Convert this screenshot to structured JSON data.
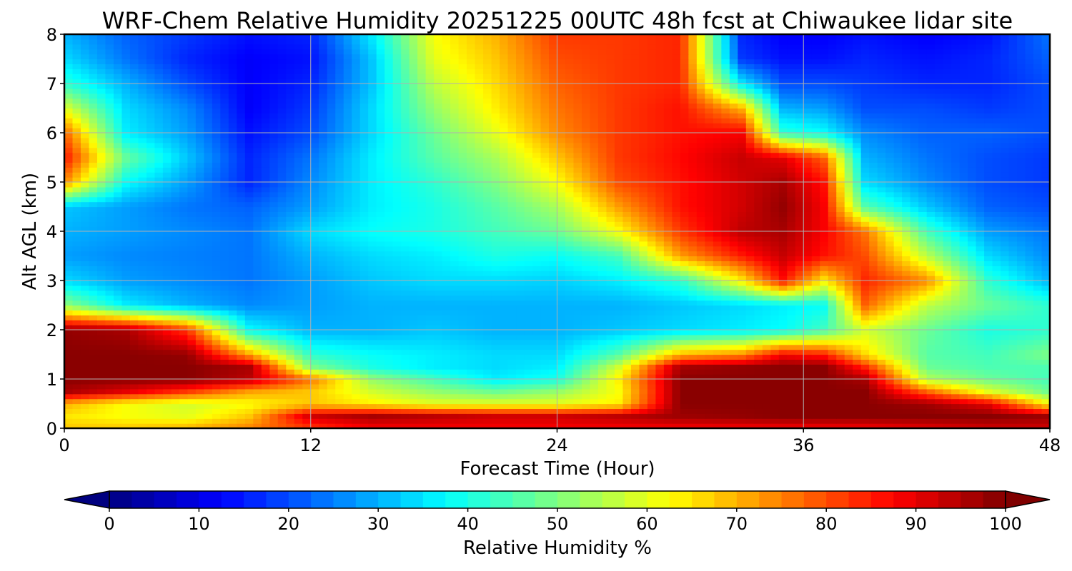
{
  "chart_data": {
    "type": "heatmap",
    "title": "WRF-Chem Relative Humidity 20251225 00UTC 48h fcst at Chiwaukee lidar site",
    "xlabel": "Forecast Time (Hour)",
    "ylabel": "Alt AGL (km)",
    "xlim": [
      0,
      48
    ],
    "ylim": [
      0,
      8
    ],
    "x_ticks": [
      "0",
      "12",
      "24",
      "36",
      "48"
    ],
    "y_ticks": [
      "0",
      "1",
      "2",
      "3",
      "4",
      "5",
      "6",
      "7",
      "8"
    ],
    "grid": true,
    "colorbar": {
      "label": "Relative Humidity %",
      "colormap": "jet",
      "range": [
        0,
        100
      ],
      "ticks": [
        "0",
        "10",
        "20",
        "30",
        "40",
        "50",
        "60",
        "70",
        "80",
        "90",
        "100"
      ],
      "extend": "both"
    },
    "x": [
      0,
      3,
      6,
      9,
      12,
      15,
      18,
      21,
      24,
      27,
      30,
      33,
      35,
      37,
      39,
      42,
      45,
      48
    ],
    "y": [
      0,
      0.25,
      0.5,
      0.75,
      1,
      1.25,
      1.5,
      2,
      2.5,
      3,
      3.5,
      4,
      4.5,
      5,
      5.5,
      6,
      6.5,
      7,
      7.5,
      8
    ],
    "z": [
      [
        68,
        68,
        70,
        75,
        82,
        88,
        88,
        88,
        88,
        88,
        88,
        88,
        88,
        88,
        88,
        90,
        92,
        92
      ],
      [
        65,
        62,
        60,
        68,
        92,
        96,
        94,
        92,
        92,
        94,
        97,
        98,
        99,
        99,
        99,
        99,
        99,
        97
      ],
      [
        70,
        62,
        58,
        62,
        68,
        64,
        60,
        60,
        60,
        64,
        99,
        99,
        99,
        99,
        99,
        97,
        90,
        62
      ],
      [
        96,
        90,
        82,
        72,
        68,
        58,
        52,
        48,
        52,
        62,
        99,
        99,
        99,
        99,
        99,
        78,
        60,
        48
      ],
      [
        99,
        99,
        99,
        94,
        76,
        52,
        44,
        36,
        40,
        64,
        99,
        99,
        99,
        99,
        96,
        55,
        48,
        44
      ],
      [
        99,
        99,
        99,
        96,
        50,
        40,
        36,
        34,
        36,
        58,
        96,
        98,
        99,
        99,
        84,
        48,
        45,
        45
      ],
      [
        99,
        99,
        98,
        72,
        42,
        38,
        36,
        34,
        34,
        46,
        70,
        74,
        88,
        85,
        66,
        46,
        44,
        50
      ],
      [
        98,
        96,
        82,
        38,
        30,
        30,
        32,
        30,
        30,
        32,
        34,
        36,
        38,
        44,
        58,
        48,
        40,
        42
      ],
      [
        52,
        36,
        30,
        26,
        28,
        30,
        30,
        30,
        30,
        30,
        32,
        34,
        36,
        38,
        78,
        56,
        48,
        42
      ],
      [
        34,
        28,
        26,
        24,
        28,
        32,
        34,
        34,
        33,
        36,
        42,
        64,
        86,
        64,
        84,
        74,
        42,
        30
      ],
      [
        28,
        26,
        25,
        24,
        30,
        34,
        36,
        40,
        38,
        44,
        72,
        85,
        93,
        86,
        80,
        56,
        34,
        26
      ],
      [
        30,
        28,
        26,
        24,
        34,
        38,
        40,
        44,
        48,
        62,
        82,
        94,
        96,
        88,
        76,
        44,
        28,
        24
      ],
      [
        32,
        28,
        24,
        22,
        28,
        36,
        40,
        46,
        54,
        72,
        86,
        92,
        98,
        88,
        46,
        32,
        22,
        20
      ],
      [
        74,
        38,
        28,
        16,
        26,
        36,
        42,
        50,
        62,
        80,
        86,
        92,
        96,
        86,
        34,
        26,
        20,
        18
      ],
      [
        86,
        48,
        32,
        16,
        24,
        36,
        46,
        54,
        68,
        82,
        87,
        93,
        90,
        78,
        30,
        24,
        20,
        18
      ],
      [
        78,
        36,
        28,
        14,
        20,
        34,
        48,
        60,
        74,
        82,
        86,
        88,
        42,
        38,
        26,
        22,
        22,
        20
      ],
      [
        60,
        34,
        26,
        12,
        18,
        34,
        52,
        64,
        76,
        82,
        86,
        70,
        30,
        28,
        20,
        20,
        18,
        20
      ],
      [
        42,
        30,
        20,
        12,
        16,
        32,
        56,
        66,
        78,
        82,
        84,
        36,
        20,
        20,
        18,
        16,
        16,
        20
      ],
      [
        34,
        24,
        16,
        12,
        14,
        32,
        60,
        68,
        80,
        82,
        84,
        18,
        14,
        14,
        16,
        14,
        16,
        22
      ],
      [
        30,
        22,
        18,
        14,
        16,
        36,
        62,
        70,
        82,
        82,
        84,
        16,
        12,
        12,
        14,
        12,
        14,
        24
      ]
    ]
  }
}
